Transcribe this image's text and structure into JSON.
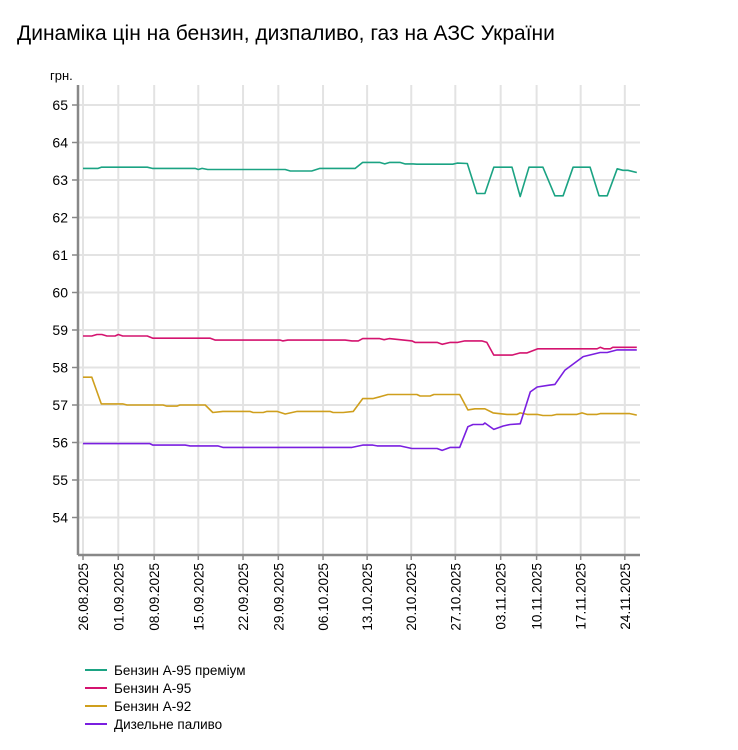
{
  "chart_data": {
    "type": "line",
    "title": "Динаміка цін на бензин, дизпаливо, газ на АЗС України",
    "ylabel": "грн.",
    "xlabel": "",
    "x_unit": "data point index (trading day)",
    "ylim": [
      53,
      65.5
    ],
    "yticks": [
      54,
      55,
      56,
      57,
      58,
      59,
      60,
      61,
      62,
      63,
      64,
      65
    ],
    "xlim": [
      -0.8,
      88.6
    ],
    "xticks": [
      {
        "i": 0,
        "label": "26.08.2025"
      },
      {
        "i": 5.6,
        "label": "01.09.2025"
      },
      {
        "i": 11.3,
        "label": "08.09.2025"
      },
      {
        "i": 18.3,
        "label": "15.09.2025"
      },
      {
        "i": 25.4,
        "label": "22.09.2025"
      },
      {
        "i": 31,
        "label": "29.09.2025"
      },
      {
        "i": 38.1,
        "label": "06.10.2025"
      },
      {
        "i": 45.1,
        "label": "13.10.2025"
      },
      {
        "i": 52.1,
        "label": "20.10.2025"
      },
      {
        "i": 59.1,
        "label": "27.10.2025"
      },
      {
        "i": 66.3,
        "label": "03.11.2025"
      },
      {
        "i": 72,
        "label": "10.11.2025"
      },
      {
        "i": 79,
        "label": "17.11.2025"
      },
      {
        "i": 86,
        "label": "24.11.2025"
      }
    ],
    "grid": true,
    "legend_position": "bottom-left",
    "series": [
      {
        "name": "Бензин А-95 преміум",
        "color": "#1ba383",
        "points": [
          [
            0,
            63.31
          ],
          [
            2.4,
            63.31
          ],
          [
            2.9,
            63.34
          ],
          [
            10.2,
            63.34
          ],
          [
            11,
            63.31
          ],
          [
            17.8,
            63.31
          ],
          [
            18.3,
            63.28
          ],
          [
            18.9,
            63.31
          ],
          [
            19.8,
            63.28
          ],
          [
            32.1,
            63.28
          ],
          [
            32.9,
            63.24
          ],
          [
            36.3,
            63.24
          ],
          [
            37.6,
            63.31
          ],
          [
            43.2,
            63.31
          ],
          [
            44.4,
            63.47
          ],
          [
            47.1,
            63.47
          ],
          [
            47.9,
            63.43
          ],
          [
            48.7,
            63.47
          ],
          [
            50.3,
            63.47
          ],
          [
            51.1,
            63.43
          ],
          [
            52.4,
            63.43
          ],
          [
            53,
            63.42
          ],
          [
            58.7,
            63.42
          ],
          [
            59.4,
            63.45
          ],
          [
            61,
            63.44
          ],
          [
            62.5,
            62.64
          ],
          [
            63.8,
            62.64
          ],
          [
            65.2,
            63.34
          ],
          [
            68.1,
            63.34
          ],
          [
            69.4,
            62.56
          ],
          [
            70.8,
            63.34
          ],
          [
            73,
            63.34
          ],
          [
            74.9,
            62.58
          ],
          [
            76.2,
            62.58
          ],
          [
            77.8,
            63.34
          ],
          [
            80.5,
            63.34
          ],
          [
            81.9,
            62.58
          ],
          [
            83.2,
            62.58
          ],
          [
            84.8,
            63.3
          ],
          [
            85.7,
            63.26
          ],
          [
            86.5,
            63.26
          ],
          [
            87.9,
            63.2
          ]
        ]
      },
      {
        "name": "Бензин А-95",
        "color": "#d4136f",
        "points": [
          [
            0,
            58.84
          ],
          [
            1.4,
            58.84
          ],
          [
            2.2,
            58.88
          ],
          [
            3,
            58.88
          ],
          [
            3.8,
            58.84
          ],
          [
            5.1,
            58.84
          ],
          [
            5.6,
            58.88
          ],
          [
            6.3,
            58.84
          ],
          [
            10.2,
            58.84
          ],
          [
            11.1,
            58.78
          ],
          [
            20.2,
            58.78
          ],
          [
            21,
            58.73
          ],
          [
            31.3,
            58.73
          ],
          [
            31.7,
            58.71
          ],
          [
            32.5,
            58.73
          ],
          [
            41.6,
            58.73
          ],
          [
            42.7,
            58.71
          ],
          [
            43.7,
            58.71
          ],
          [
            44.4,
            58.77
          ],
          [
            47.1,
            58.77
          ],
          [
            47.8,
            58.74
          ],
          [
            48.6,
            58.77
          ],
          [
            50.3,
            58.74
          ],
          [
            52.2,
            58.71
          ],
          [
            52.7,
            58.67
          ],
          [
            56.2,
            58.67
          ],
          [
            57,
            58.62
          ],
          [
            58.3,
            58.67
          ],
          [
            59.5,
            58.67
          ],
          [
            60.6,
            58.71
          ],
          [
            63.3,
            58.71
          ],
          [
            64.1,
            58.67
          ],
          [
            65.2,
            58.33
          ],
          [
            68.1,
            58.33
          ],
          [
            69.4,
            58.39
          ],
          [
            70.5,
            58.39
          ],
          [
            72.2,
            58.5
          ],
          [
            81.6,
            58.5
          ],
          [
            82.1,
            58.54
          ],
          [
            82.7,
            58.5
          ],
          [
            83.7,
            58.5
          ],
          [
            84.1,
            58.54
          ],
          [
            87.9,
            58.54
          ]
        ]
      },
      {
        "name": "Бензин А-92",
        "color": "#cf9f1d",
        "points": [
          [
            0,
            57.74
          ],
          [
            1.4,
            57.74
          ],
          [
            2.9,
            57.03
          ],
          [
            6.3,
            57.03
          ],
          [
            7,
            57
          ],
          [
            12.7,
            57
          ],
          [
            13.3,
            56.97
          ],
          [
            14.9,
            56.97
          ],
          [
            15.4,
            57
          ],
          [
            19.4,
            57
          ],
          [
            20.6,
            56.8
          ],
          [
            22.2,
            56.83
          ],
          [
            26.5,
            56.83
          ],
          [
            27,
            56.8
          ],
          [
            28.6,
            56.8
          ],
          [
            29.2,
            56.83
          ],
          [
            30.8,
            56.83
          ],
          [
            32.1,
            56.76
          ],
          [
            34,
            56.83
          ],
          [
            39.2,
            56.83
          ],
          [
            39.7,
            56.8
          ],
          [
            41.3,
            56.8
          ],
          [
            42.9,
            56.83
          ],
          [
            44.4,
            57.17
          ],
          [
            46,
            57.17
          ],
          [
            47.1,
            57.22
          ],
          [
            48.4,
            57.28
          ],
          [
            53,
            57.28
          ],
          [
            53.5,
            57.24
          ],
          [
            55.1,
            57.24
          ],
          [
            55.7,
            57.28
          ],
          [
            59.8,
            57.28
          ],
          [
            61.1,
            56.87
          ],
          [
            62.2,
            56.9
          ],
          [
            63.8,
            56.9
          ],
          [
            65.1,
            56.79
          ],
          [
            67.3,
            56.75
          ],
          [
            68.9,
            56.75
          ],
          [
            69.4,
            56.79
          ],
          [
            70.5,
            56.75
          ],
          [
            72.1,
            56.75
          ],
          [
            73,
            56.72
          ],
          [
            74.4,
            56.72
          ],
          [
            75.2,
            56.75
          ],
          [
            78.4,
            56.75
          ],
          [
            79.2,
            56.79
          ],
          [
            80,
            56.75
          ],
          [
            81.6,
            56.75
          ],
          [
            82.1,
            56.77
          ],
          [
            86.8,
            56.77
          ],
          [
            87.9,
            56.73
          ]
        ]
      },
      {
        "name": "Дизельне паливо",
        "color": "#7a1fe0",
        "points": [
          [
            0,
            55.97
          ],
          [
            10.6,
            55.97
          ],
          [
            11.1,
            55.93
          ],
          [
            16.2,
            55.93
          ],
          [
            17,
            55.91
          ],
          [
            21.4,
            55.91
          ],
          [
            22.2,
            55.87
          ],
          [
            42.7,
            55.87
          ],
          [
            44.4,
            55.93
          ],
          [
            46,
            55.93
          ],
          [
            46.7,
            55.91
          ],
          [
            50.3,
            55.91
          ],
          [
            52.2,
            55.84
          ],
          [
            56.2,
            55.84
          ],
          [
            57,
            55.79
          ],
          [
            58.3,
            55.87
          ],
          [
            59.8,
            55.87
          ],
          [
            61.1,
            56.42
          ],
          [
            61.9,
            56.48
          ],
          [
            63.5,
            56.48
          ],
          [
            63.8,
            56.52
          ],
          [
            65.2,
            56.35
          ],
          [
            66.7,
            56.44
          ],
          [
            67.8,
            56.48
          ],
          [
            69.4,
            56.5
          ],
          [
            71,
            57.35
          ],
          [
            72.1,
            57.48
          ],
          [
            74.1,
            57.53
          ],
          [
            74.9,
            57.55
          ],
          [
            76.5,
            57.93
          ],
          [
            79.4,
            58.29
          ],
          [
            82.1,
            58.4
          ],
          [
            83.2,
            58.4
          ],
          [
            84.8,
            58.47
          ],
          [
            87.9,
            58.47
          ]
        ]
      }
    ]
  }
}
